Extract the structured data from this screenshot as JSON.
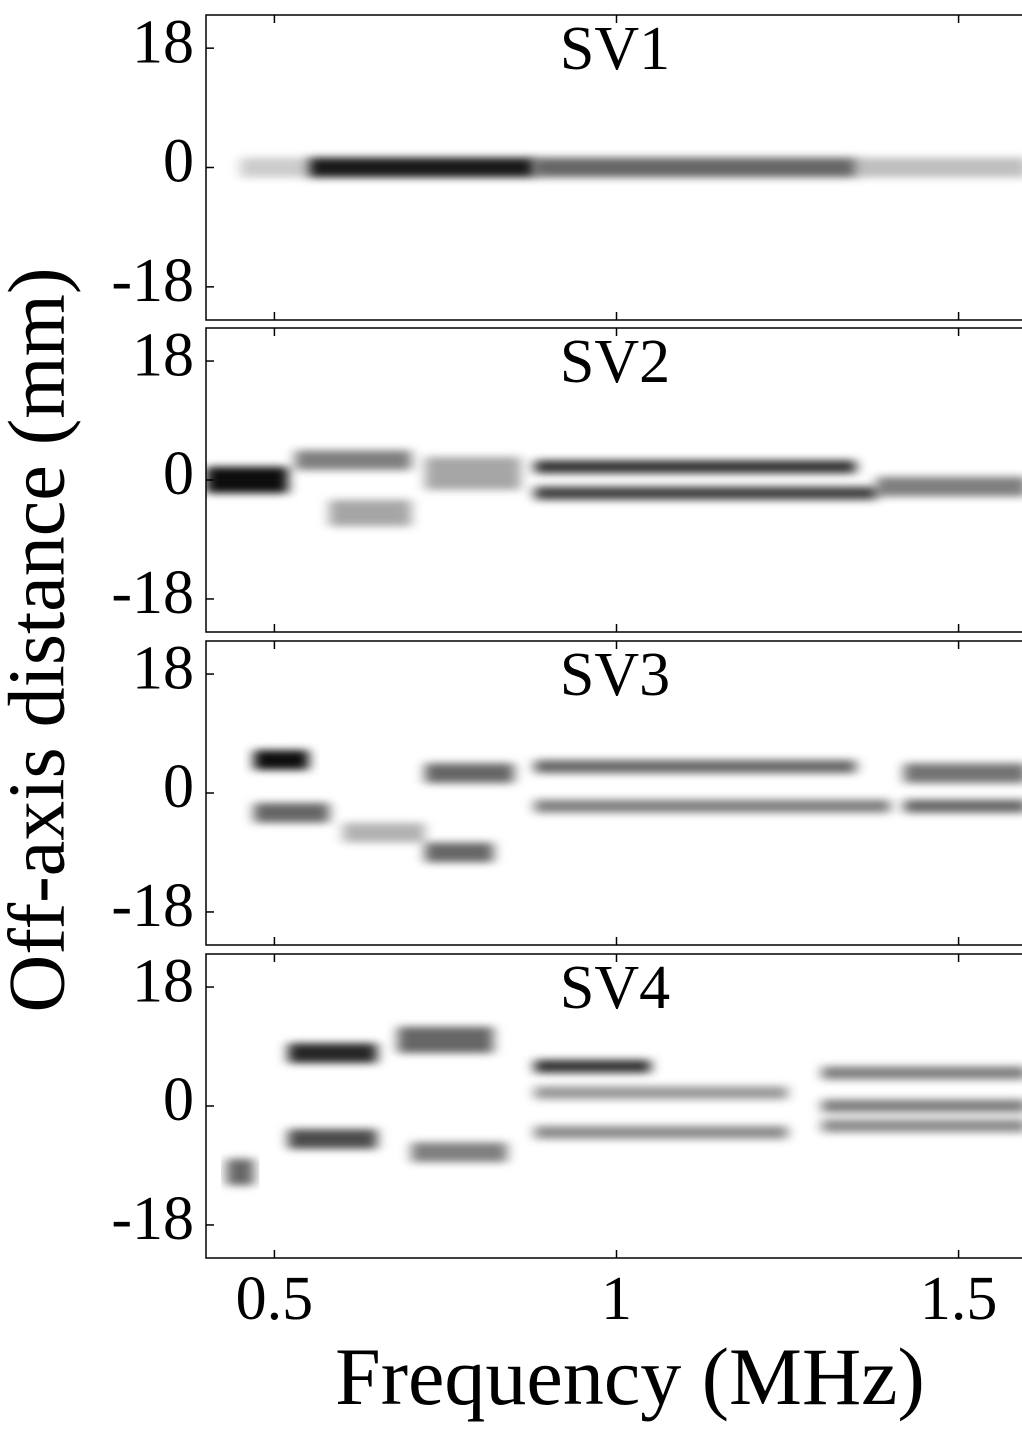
{
  "chart_data": {
    "type": "heatmap",
    "xlabel": "Frequency (MHz)",
    "ylabel": "Off-axis distance (mm)",
    "xlim": [
      0.4,
      1.6
    ],
    "xticks": [
      0.5,
      1,
      1.5
    ],
    "panels": [
      {
        "title": "SV1",
        "ylim": [
          -23,
          23
        ],
        "yticks": [
          -18,
          0,
          18
        ],
        "bands": [
          {
            "x0": 0.45,
            "x1": 0.55,
            "y": 0,
            "h": 3,
            "level": 0.2
          },
          {
            "x0": 0.55,
            "x1": 0.88,
            "y": 0,
            "h": 3,
            "level": 0.9
          },
          {
            "x0": 0.88,
            "x1": 1.35,
            "y": 0,
            "h": 3,
            "level": 0.6
          },
          {
            "x0": 1.35,
            "x1": 1.6,
            "y": 0,
            "h": 3,
            "level": 0.25
          }
        ]
      },
      {
        "title": "SV2",
        "ylim": [
          -23,
          23
        ],
        "yticks": [
          -18,
          0,
          18
        ],
        "bands": [
          {
            "x0": 0.4,
            "x1": 0.52,
            "y": 0,
            "h": 4,
            "level": 0.95
          },
          {
            "x0": 0.53,
            "x1": 0.7,
            "y": 3,
            "h": 3,
            "level": 0.5
          },
          {
            "x0": 0.58,
            "x1": 0.7,
            "y": -5,
            "h": 4,
            "level": 0.35
          },
          {
            "x0": 0.72,
            "x1": 0.86,
            "y": 1,
            "h": 5,
            "level": 0.35
          },
          {
            "x0": 0.88,
            "x1": 1.35,
            "y": 2,
            "h": 2,
            "level": 0.8
          },
          {
            "x0": 0.88,
            "x1": 1.38,
            "y": -2,
            "h": 2,
            "level": 0.75
          },
          {
            "x0": 1.38,
            "x1": 1.6,
            "y": -1,
            "h": 3,
            "level": 0.5
          }
        ]
      },
      {
        "title": "SV3",
        "ylim": [
          -23,
          23
        ],
        "yticks": [
          -18,
          0,
          18
        ],
        "bands": [
          {
            "x0": 0.47,
            "x1": 0.55,
            "y": 5,
            "h": 3,
            "level": 0.95
          },
          {
            "x0": 0.47,
            "x1": 0.58,
            "y": -3,
            "h": 3,
            "level": 0.6
          },
          {
            "x0": 0.6,
            "x1": 0.72,
            "y": -6,
            "h": 3,
            "level": 0.3
          },
          {
            "x0": 0.72,
            "x1": 0.85,
            "y": 3,
            "h": 3,
            "level": 0.6
          },
          {
            "x0": 0.72,
            "x1": 0.82,
            "y": -9,
            "h": 3,
            "level": 0.6
          },
          {
            "x0": 0.88,
            "x1": 1.35,
            "y": 4,
            "h": 2,
            "level": 0.6
          },
          {
            "x0": 0.88,
            "x1": 1.4,
            "y": -2,
            "h": 2,
            "level": 0.5
          },
          {
            "x0": 1.42,
            "x1": 1.6,
            "y": 3,
            "h": 3,
            "level": 0.55
          },
          {
            "x0": 1.42,
            "x1": 1.6,
            "y": -2,
            "h": 2,
            "level": 0.6
          }
        ]
      },
      {
        "title": "SV4",
        "ylim": [
          -23,
          23
        ],
        "yticks": [
          -18,
          0,
          18
        ],
        "bands": [
          {
            "x0": 0.43,
            "x1": 0.47,
            "y": -10,
            "h": 4,
            "level": 0.6
          },
          {
            "x0": 0.52,
            "x1": 0.65,
            "y": 8,
            "h": 3,
            "level": 0.85
          },
          {
            "x0": 0.52,
            "x1": 0.65,
            "y": -5,
            "h": 3,
            "level": 0.7
          },
          {
            "x0": 0.68,
            "x1": 0.82,
            "y": 10,
            "h": 4,
            "level": 0.6
          },
          {
            "x0": 0.7,
            "x1": 0.84,
            "y": -7,
            "h": 3,
            "level": 0.5
          },
          {
            "x0": 0.88,
            "x1": 1.05,
            "y": 6,
            "h": 2,
            "level": 0.8
          },
          {
            "x0": 0.88,
            "x1": 1.25,
            "y": 2,
            "h": 2,
            "level": 0.4
          },
          {
            "x0": 0.88,
            "x1": 1.25,
            "y": -4,
            "h": 2,
            "level": 0.45
          },
          {
            "x0": 1.3,
            "x1": 1.6,
            "y": 5,
            "h": 2,
            "level": 0.5
          },
          {
            "x0": 1.3,
            "x1": 1.6,
            "y": 0,
            "h": 2,
            "level": 0.5
          },
          {
            "x0": 1.3,
            "x1": 1.6,
            "y": -3,
            "h": 2,
            "level": 0.45
          }
        ]
      }
    ]
  }
}
